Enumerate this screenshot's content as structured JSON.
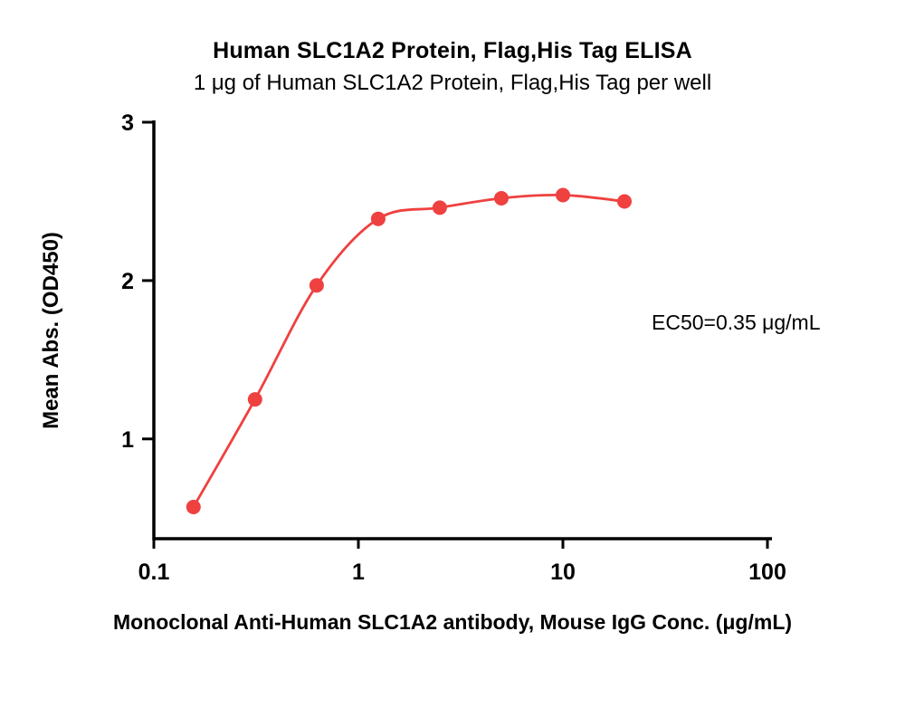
{
  "chart_data": {
    "type": "scatter",
    "title": "Human SLC1A2 Protein, Flag,His Tag ELISA",
    "subtitle": "1 μg of Human SLC1A2 Protein, Flag,His Tag per well",
    "xlabel": "Monoclonal Anti-Human SLC1A2 antibody, Mouse IgG Conc. (μg/mL)",
    "ylabel": "Mean Abs. (OD450)",
    "x_scale": "log10",
    "x": [
      0.15625,
      0.3125,
      0.625,
      1.25,
      2.5,
      5,
      10,
      20
    ],
    "y": [
      0.57,
      1.25,
      1.97,
      2.39,
      2.46,
      2.52,
      2.54,
      2.5
    ],
    "series_name": "Monoclonal Anti-Human SLC1A2 antibody, Mouse IgG",
    "fit": "4PL sigmoid dose-response",
    "ec50_label": "EC50=0.35 μg/mL",
    "xlim": [
      0.1,
      100
    ],
    "ylim": [
      0.37,
      3
    ],
    "x_ticks": [
      0.1,
      1,
      10,
      100
    ],
    "x_tick_labels": [
      "0.1",
      "1",
      "10",
      "100"
    ],
    "y_ticks": [
      1,
      2,
      3
    ],
    "y_tick_labels": [
      "1",
      "2",
      "3"
    ],
    "grid": false,
    "legend": "none",
    "marker_color": "#ee4140",
    "line_color": "#ee4140",
    "axis_color": "#000000",
    "background_color": "#ffffff"
  }
}
